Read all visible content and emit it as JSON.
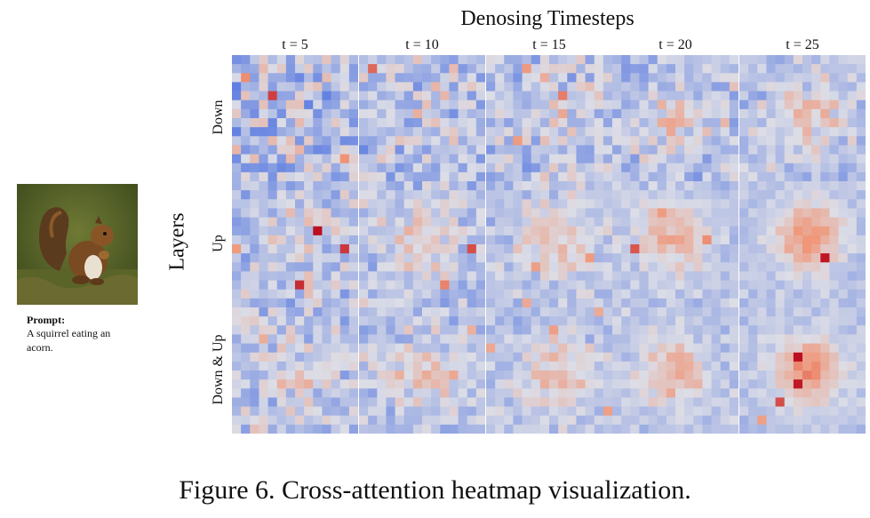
{
  "axis_title": "Denosing Timesteps",
  "columns": [
    "t = 5",
    "t = 10",
    "t = 15",
    "t = 20",
    "t = 25"
  ],
  "layers_title": "Layers",
  "rows": [
    "Down",
    "Up",
    "Down & Up"
  ],
  "prompt": {
    "label": "Prompt:",
    "text": "A squirrel eating an acorn."
  },
  "caption": "Figure 6. Cross-attention heatmap visualization.",
  "colors": {
    "cold": "#4a6fe0",
    "neutral": "#dcdde6",
    "hot": "#bc0f20"
  }
}
